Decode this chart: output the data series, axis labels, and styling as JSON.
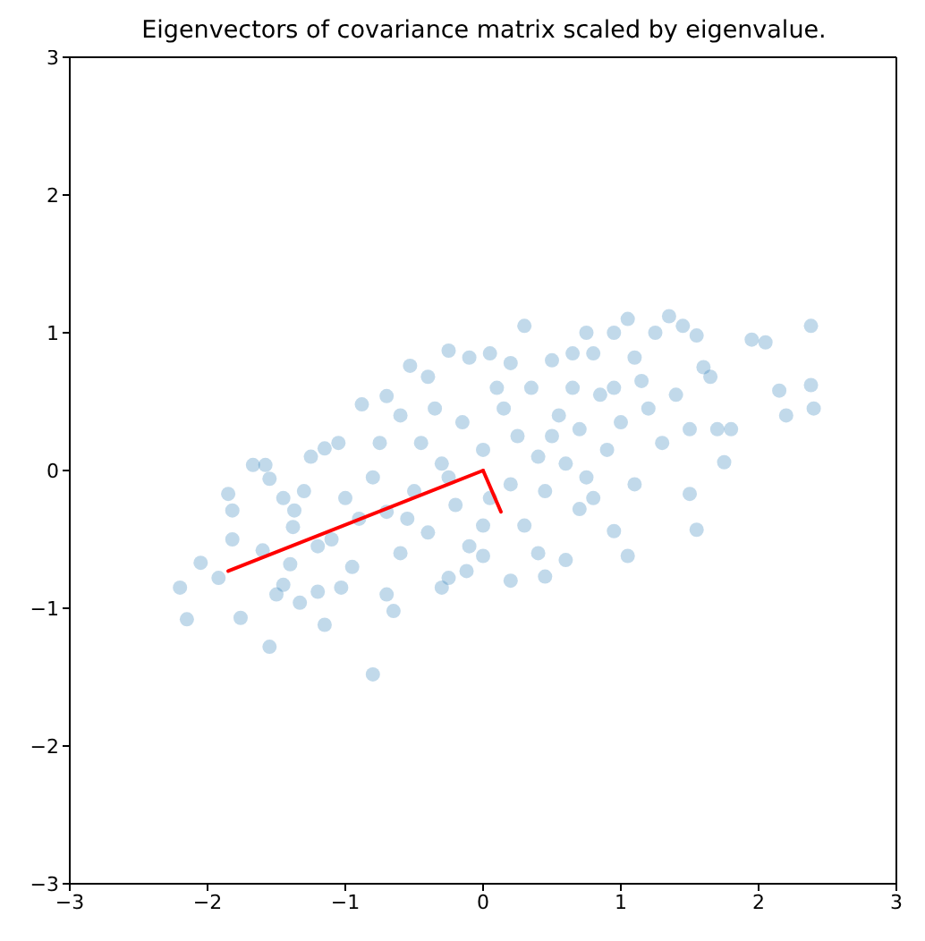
{
  "chart_data": {
    "type": "scatter",
    "title": "Eigenvectors of covariance matrix scaled by eigenvalue.",
    "xlim": [
      -3,
      3
    ],
    "ylim": [
      -3,
      3
    ],
    "xticks": [
      -3,
      -2,
      -1,
      0,
      1,
      2,
      3
    ],
    "yticks": [
      -3,
      -2,
      -1,
      0,
      1,
      2,
      3
    ],
    "marker": "circle",
    "series": [
      {
        "color": "#1f77b4",
        "x": [
          -2.2,
          -2.15,
          -2.05,
          -1.92,
          -1.85,
          -1.82,
          -1.82,
          -1.76,
          -1.67,
          -1.58,
          -1.55,
          -1.5,
          -1.45,
          -1.6,
          -1.4,
          -1.37,
          -1.38,
          -1.33,
          -1.25,
          -1.15,
          -1.05,
          -1.2,
          -1.15,
          -1.03,
          -1.55,
          -0.8,
          -0.7,
          -0.65,
          -0.88,
          -0.7,
          -0.53,
          -0.4,
          -0.25,
          -0.1,
          0.05,
          0.2,
          0.3,
          0.5,
          0.65,
          0.75,
          0.8,
          0.95,
          1.05,
          1.1,
          1.25,
          1.35,
          1.45,
          1.55,
          1.95,
          2.05,
          2.15,
          2.2,
          2.38,
          2.38,
          2.4,
          1.65,
          1.8,
          1.75,
          1.5,
          1.55,
          1.05,
          0.95,
          0.7,
          0.4,
          0.45,
          0.2,
          0.0,
          -0.25,
          -0.3,
          -0.12,
          0.6,
          -1.0,
          -1.1,
          -0.9,
          -0.8,
          -0.7,
          -0.6,
          -0.5,
          -0.45,
          -0.4,
          -0.3,
          -0.2,
          -0.15,
          -0.1,
          0,
          0.05,
          0.15,
          0.2,
          0.25,
          0.3,
          0.35,
          0.4,
          0.45,
          0.55,
          0.6,
          0.7,
          0.75,
          0.85,
          0.9,
          1.0,
          1.1,
          1.2,
          1.3,
          1.4,
          1.5,
          1.6,
          -0.6,
          -0.35,
          -1.3,
          -1.2,
          -0.95,
          -0.55,
          -0.25,
          0.1,
          0.5,
          0.8,
          1.15,
          1.7,
          -0.75,
          -1.45,
          0.0,
          0.65,
          0.95
        ],
        "values": [
          -0.85,
          -1.08,
          -0.67,
          -0.78,
          -0.17,
          -0.29,
          -0.5,
          -1.07,
          0.04,
          0.04,
          -0.06,
          -0.9,
          -0.83,
          -0.58,
          -0.68,
          -0.29,
          -0.41,
          -0.96,
          0.1,
          0.16,
          0.2,
          -0.88,
          -1.12,
          -0.85,
          -1.28,
          -1.48,
          -0.9,
          -1.02,
          0.48,
          0.54,
          0.76,
          0.68,
          0.87,
          0.82,
          0.85,
          0.78,
          1.05,
          0.8,
          0.85,
          1.0,
          0.85,
          1.0,
          1.1,
          0.82,
          1.0,
          1.12,
          1.05,
          0.98,
          0.95,
          0.93,
          0.58,
          0.4,
          1.05,
          0.62,
          0.45,
          0.68,
          0.3,
          0.06,
          -0.17,
          -0.43,
          -0.62,
          -0.44,
          -0.28,
          -0.6,
          -0.77,
          -0.8,
          -0.62,
          -0.78,
          -0.85,
          -0.73,
          -0.65,
          -0.2,
          -0.5,
          -0.35,
          -0.05,
          -0.3,
          -0.6,
          -0.15,
          0.2,
          -0.45,
          0.05,
          -0.25,
          0.35,
          -0.55,
          0.15,
          -0.2,
          0.45,
          -0.1,
          0.25,
          -0.4,
          0.6,
          0.1,
          -0.15,
          0.4,
          0.05,
          0.3,
          -0.05,
          0.55,
          0.15,
          0.35,
          -0.1,
          0.45,
          0.2,
          0.55,
          0.3,
          0.75,
          0.4,
          0.45,
          -0.15,
          -0.55,
          -0.7,
          -0.35,
          -0.05,
          0.6,
          0.25,
          -0.2,
          0.65,
          0.3,
          0.2,
          -0.2,
          -0.4,
          0.6,
          0.6
        ]
      },
      {
        "type": "line",
        "color": "#ff0000",
        "marker": "none",
        "line_style": "solid",
        "x": [
          0,
          -1.85
        ],
        "values": [
          0,
          -0.73
        ]
      },
      {
        "type": "line",
        "color": "#ff0000",
        "marker": "none",
        "line_style": "solid",
        "x": [
          0,
          0.13
        ],
        "values": [
          0,
          -0.3
        ]
      }
    ]
  }
}
